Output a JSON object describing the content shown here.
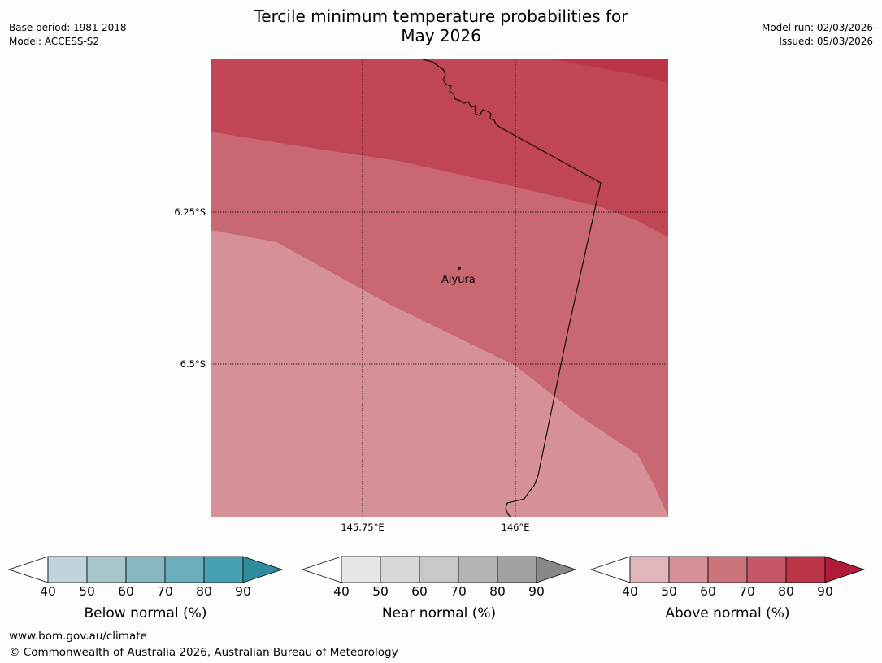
{
  "header": {
    "title_line1": "Tercile minimum temperature probabilities for",
    "title_line2": "May 2026",
    "base_period": "Base period: 1981-2018",
    "model": "Model: ACCESS-S2",
    "model_run": "Model run: 02/03/2026",
    "issued": "Issued: 05/03/2026"
  },
  "map": {
    "lat_labels": [
      "6.25°S",
      "6.5°S"
    ],
    "lon_labels": [
      "145.75°E",
      "146°E"
    ],
    "place_name": "Aiyura",
    "zone_colors": {
      "band_80_90": "#c04655",
      "band_70_80": "#c96873",
      "band_60_70": "#d69097"
    }
  },
  "legends": [
    {
      "label": "Below normal (%)",
      "ticks": [
        "40",
        "50",
        "60",
        "70",
        "80",
        "90"
      ],
      "colors": [
        "#bfd5db",
        "#a7c6cc",
        "#8ab6c1",
        "#6aaebb",
        "#45a0af",
        "#2e8c9e"
      ]
    },
    {
      "label": "Near normal (%)",
      "ticks": [
        "40",
        "50",
        "60",
        "70",
        "80",
        "90"
      ],
      "colors": [
        "#e6e6e6",
        "#d8d8d8",
        "#c8c8c8",
        "#b4b4b4",
        "#a1a1a1",
        "#888888"
      ]
    },
    {
      "label": "Above normal (%)",
      "ticks": [
        "40",
        "50",
        "60",
        "70",
        "80",
        "90"
      ],
      "colors": [
        "#e0b6bb",
        "#d69097",
        "#cc747c",
        "#c45868",
        "#bb3448",
        "#b01c38"
      ]
    }
  ],
  "footer": {
    "website": "www.bom.gov.au/climate",
    "copyright": "© Commonwealth of Australia 2026, Australian Bureau of Meteorology"
  }
}
